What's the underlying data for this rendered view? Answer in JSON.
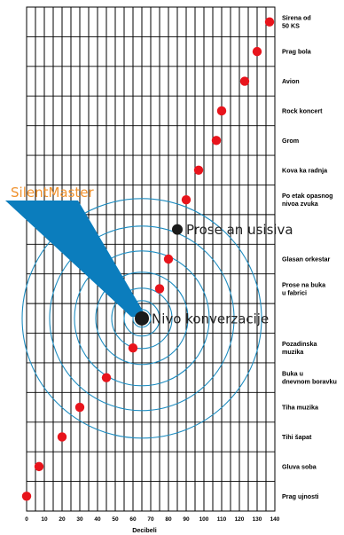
{
  "chart_data": {
    "type": "scatter",
    "xlabel": "Decibeli",
    "xlim": [
      0,
      140
    ],
    "x_ticks": [
      0,
      10,
      20,
      30,
      40,
      50,
      60,
      70,
      80,
      90,
      100,
      110,
      120,
      130,
      140
    ],
    "categories": [
      {
        "label": "Sirena od 50 KS",
        "lines": [
          "Sirena od",
          "50 KS"
        ],
        "value": 137
      },
      {
        "label": "Prag bola",
        "lines": [
          "Prag bola"
        ],
        "value": 130
      },
      {
        "label": "Avion",
        "lines": [
          "Avion"
        ],
        "value": 123
      },
      {
        "label": "Rock koncert",
        "lines": [
          "Rock koncert"
        ],
        "value": 110
      },
      {
        "label": "Grom",
        "lines": [
          "Grom"
        ],
        "value": 107
      },
      {
        "label": "Kova ka radnja",
        "lines": [
          "Kova  ka radnja"
        ],
        "value": 97
      },
      {
        "label": "Po etak opasnog nivoa zvuka",
        "lines": [
          "Po  etak opasnog",
          "nivoa zvuka"
        ],
        "value": 90
      },
      {
        "label": "",
        "lines": [],
        "value": null
      },
      {
        "label": "Glasan orkestar",
        "lines": [
          "Glasan orkestar"
        ],
        "value": 80
      },
      {
        "label": "Prose na buka u fabrici",
        "lines": [
          "Prose  na buka",
          "u fabrici"
        ],
        "value": 75
      },
      {
        "label": "",
        "lines": [],
        "value": null
      },
      {
        "label": "Pozadinska muzika",
        "lines": [
          "Pozadinska",
          "muzika"
        ],
        "value": 60
      },
      {
        "label": "Buka u dnevnom boravku",
        "lines": [
          "Buka u",
          "dnevnom boravku"
        ],
        "value": 45
      },
      {
        "label": "Tiha muzika",
        "lines": [
          "Tiha muzika"
        ],
        "value": 30
      },
      {
        "label": "Tihi šapat",
        "lines": [
          "Tihi šapat"
        ],
        "value": 20
      },
      {
        "label": "Gluva soba",
        "lines": [
          "Gluva soba"
        ],
        "value": 7
      },
      {
        "label": "Prag ujnosti",
        "lines": [
          "Prag   ujnosti"
        ],
        "value": 0
      }
    ],
    "highlights": [
      {
        "label": "Prose an usisiva",
        "value": 85,
        "row": 7
      },
      {
        "label": "Nivo konverzacije",
        "value": 65,
        "row": 10
      }
    ],
    "callout_label": "SilentMaster",
    "colors": {
      "point": "#e8141c",
      "highlight": "#1a1a1a",
      "rings": "#1d8cc0",
      "callout": "#0b7dbd",
      "callout_text": "#f0922e",
      "grid": "#000000"
    },
    "grid": true
  }
}
